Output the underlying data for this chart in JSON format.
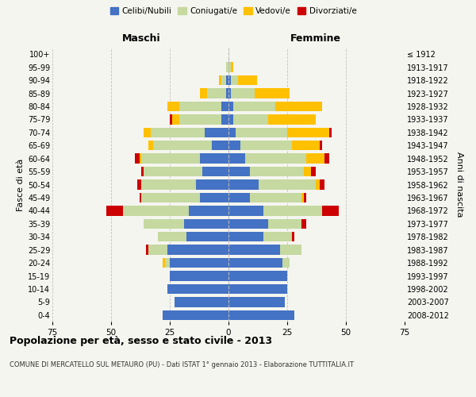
{
  "age_groups": [
    "100+",
    "95-99",
    "90-94",
    "85-89",
    "80-84",
    "75-79",
    "70-74",
    "65-69",
    "60-64",
    "55-59",
    "50-54",
    "45-49",
    "40-44",
    "35-39",
    "30-34",
    "25-29",
    "20-24",
    "15-19",
    "10-14",
    "5-9",
    "0-4"
  ],
  "birth_years": [
    "≤ 1912",
    "1913-1917",
    "1918-1922",
    "1923-1927",
    "1928-1932",
    "1933-1937",
    "1938-1942",
    "1943-1947",
    "1948-1952",
    "1953-1957",
    "1958-1962",
    "1963-1967",
    "1968-1972",
    "1973-1977",
    "1978-1982",
    "1983-1987",
    "1988-1992",
    "1993-1997",
    "1998-2002",
    "2003-2007",
    "2008-2012"
  ],
  "maschi": {
    "celibi": [
      0,
      0,
      1,
      1,
      3,
      3,
      10,
      7,
      12,
      11,
      14,
      12,
      17,
      19,
      18,
      26,
      25,
      25,
      26,
      23,
      28
    ],
    "coniugati": [
      0,
      1,
      2,
      8,
      18,
      18,
      23,
      25,
      25,
      25,
      23,
      25,
      28,
      17,
      12,
      8,
      2,
      0,
      0,
      0,
      0
    ],
    "vedovi": [
      0,
      0,
      1,
      3,
      5,
      3,
      3,
      2,
      1,
      0,
      0,
      0,
      0,
      0,
      0,
      0,
      1,
      0,
      0,
      0,
      0
    ],
    "divorziati": [
      0,
      0,
      0,
      0,
      0,
      1,
      0,
      0,
      2,
      1,
      2,
      1,
      7,
      0,
      0,
      1,
      0,
      0,
      0,
      0,
      0
    ]
  },
  "femmine": {
    "nubili": [
      0,
      0,
      1,
      1,
      2,
      2,
      3,
      5,
      7,
      9,
      13,
      9,
      15,
      17,
      15,
      22,
      23,
      25,
      25,
      24,
      28
    ],
    "coniugate": [
      0,
      1,
      3,
      10,
      18,
      15,
      22,
      22,
      26,
      23,
      24,
      22,
      25,
      14,
      12,
      9,
      3,
      0,
      0,
      0,
      0
    ],
    "vedove": [
      0,
      1,
      8,
      15,
      20,
      20,
      18,
      12,
      8,
      3,
      2,
      1,
      0,
      0,
      0,
      0,
      0,
      0,
      0,
      0,
      0
    ],
    "divorziate": [
      0,
      0,
      0,
      0,
      0,
      0,
      1,
      1,
      2,
      2,
      2,
      1,
      7,
      2,
      1,
      0,
      0,
      0,
      0,
      0,
      0
    ]
  },
  "colors": {
    "celibi": "#4472c4",
    "coniugati": "#c5d9a0",
    "vedovi": "#ffc000",
    "divorziati": "#cc0000"
  },
  "xlim": 75,
  "title": "Popolazione per età, sesso e stato civile - 2013",
  "subtitle": "COMUNE DI MERCATELLO SUL METAURO (PU) - Dati ISTAT 1° gennaio 2013 - Elaborazione TUTTITALIA.IT",
  "legend_labels": [
    "Celibi/Nubili",
    "Coniugati/e",
    "Vedovi/e",
    "Divorziati/e"
  ],
  "maschi_label": "Maschi",
  "femmine_label": "Femmine",
  "ylabel_left": "Fasce di età",
  "ylabel_right": "Anni di nascita",
  "bg_color": "#f5f5f0",
  "grid_color": "#cccccc"
}
